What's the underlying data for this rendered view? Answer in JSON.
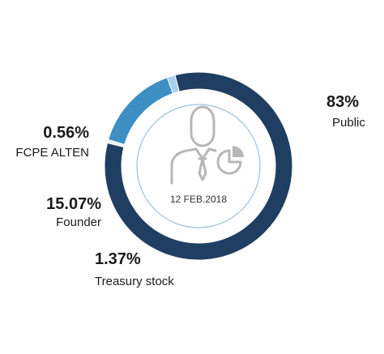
{
  "chart_data": {
    "type": "donut",
    "center_label": "12 FEB.2018",
    "slices": [
      {
        "label": "Public",
        "percent_label": "83%",
        "value": 83.0,
        "color": "#1f3e62"
      },
      {
        "label": "FCPE ALTEN",
        "percent_label": "0.56%",
        "value": 0.56,
        "color": "#e8f1f8"
      },
      {
        "label": "Founder",
        "percent_label": "15.07%",
        "value": 15.07,
        "color": "#3d8fc4"
      },
      {
        "label": "Treasury stock",
        "percent_label": "1.37%",
        "value": 1.37,
        "color": "#a9d0ea"
      }
    ]
  },
  "colors": {
    "icon": "#b7b7b7",
    "inner_circle": "#9dbfd8"
  },
  "icons": [
    "businessman-pie-chart-icon"
  ]
}
